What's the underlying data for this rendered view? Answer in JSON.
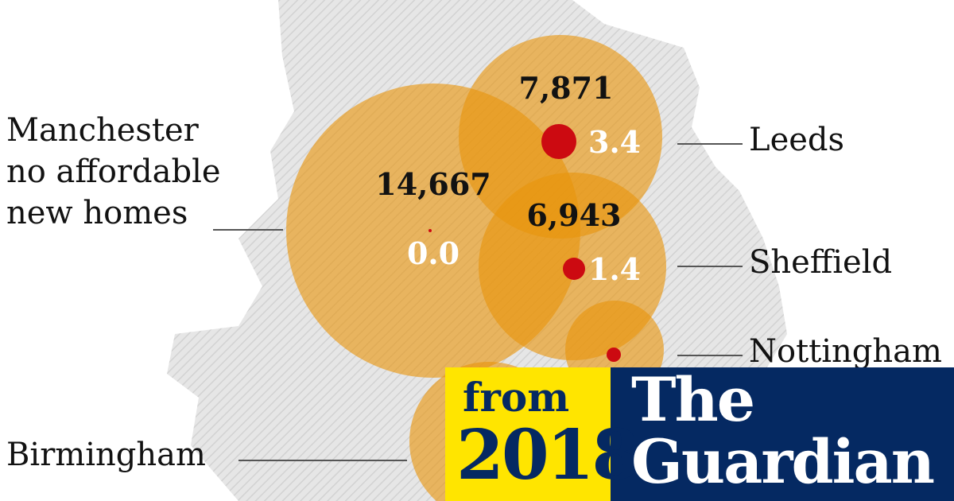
{
  "chart_data": {
    "type": "bubble",
    "series": [
      {
        "city": "Manchester",
        "label": "Manchester\nno affordable\nnew homes",
        "total_new_homes": 14667,
        "affordable_value": "0.0"
      },
      {
        "city": "Leeds",
        "label": "Leeds",
        "total_new_homes": 7871,
        "affordable_value": "3.4"
      },
      {
        "city": "Sheffield",
        "label": "Sheffield",
        "total_new_homes": 6943,
        "affordable_value": "1.4"
      },
      {
        "city": "Nottingham",
        "label": "Nottingham",
        "total_new_homes": null,
        "affordable_value": ""
      },
      {
        "city": "Birmingham",
        "label": "Birmingham",
        "total_new_homes": null,
        "affordable_value": ""
      }
    ],
    "colors": {
      "bubble": "#f2b52a",
      "bubble_overlap": "#e8940c",
      "affordable_dot": "#cc0a11",
      "map": "#dddddd"
    }
  },
  "labels": {
    "manchester_lines": [
      "Manchester",
      "no affordable",
      "new homes"
    ],
    "leeds": "Leeds",
    "sheffield": "Sheffield",
    "nottingham": "Nottingham",
    "birmingham": "Birmingham"
  },
  "values": {
    "manchester_total": "14,667",
    "manchester_affordable": "0.0",
    "leeds_total": "7,871",
    "leeds_affordable": "3.4",
    "sheffield_total": "6,943",
    "sheffield_affordable": "1.4"
  },
  "stamp": {
    "from": "from",
    "year": "2018",
    "brand_line1": "The",
    "brand_line2": "Guardian",
    "colors": {
      "navy": "#052962",
      "yellow": "#ffe500"
    }
  }
}
